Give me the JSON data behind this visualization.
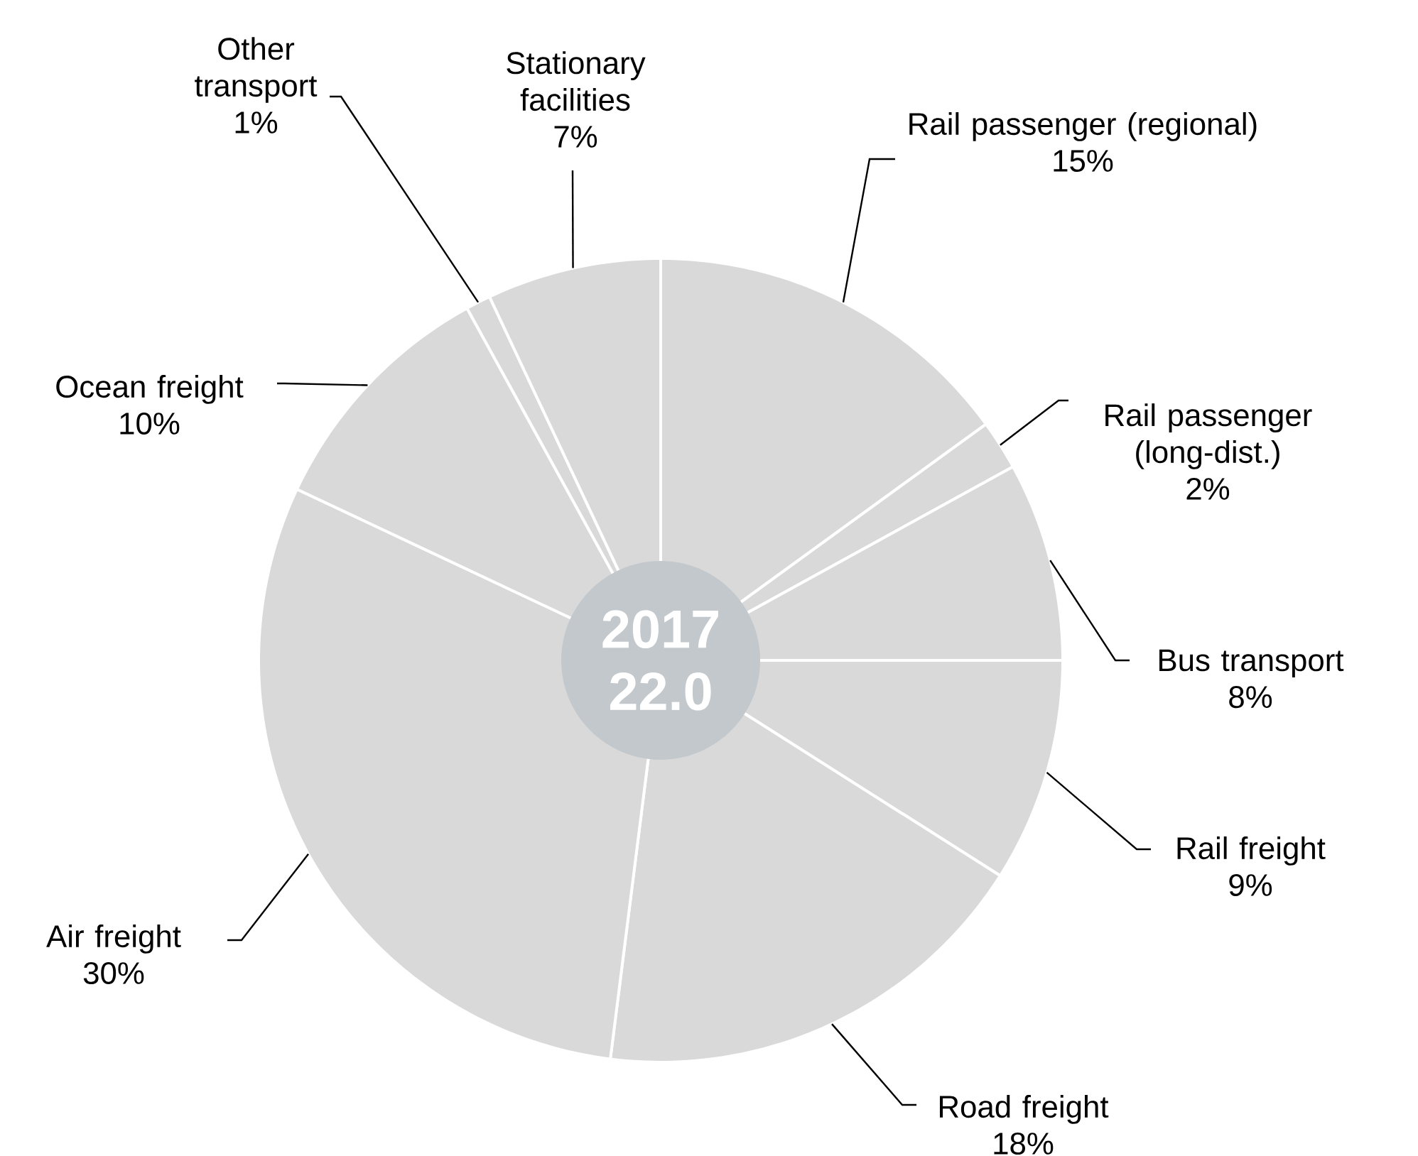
{
  "chart_data": {
    "type": "donut",
    "categories": [
      "Rail passenger (regional)",
      "Rail passenger (long-dist.)",
      "Bus transport",
      "Rail freight",
      "Road freight",
      "Air freight",
      "Ocean freight",
      "Other transport",
      "Stationary facilities"
    ],
    "values": [
      15,
      2,
      8,
      9,
      18,
      30,
      10,
      1,
      7
    ],
    "value_labels": [
      "15%",
      "2%",
      "8%",
      "9%",
      "18%",
      "30%",
      "10%",
      "1%",
      "7%"
    ],
    "colors": [
      "#d9d9d9",
      "#d9d9d9",
      "#d9d9d9",
      "#d9d9d9",
      "#d9d9d9",
      "#d9d9d9",
      "#d9d9d9",
      "#d9d9d9",
      "#d9d9d9"
    ],
    "annotations": [
      "2017",
      "22.0"
    ]
  }
}
